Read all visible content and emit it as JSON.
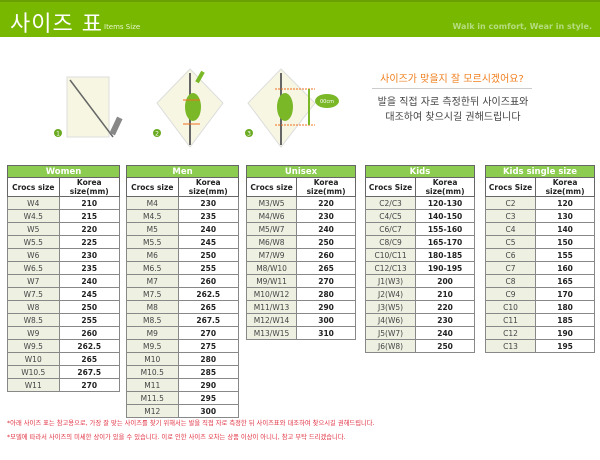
{
  "header": {
    "title": "사이즈 표",
    "subtitle": "Items Size",
    "slogan": "Walk in comfort, Wear in style.",
    "color": "#78b800"
  },
  "guide": {
    "steps": [
      "1",
      "2",
      "3"
    ],
    "measure_label": "00cm",
    "question": "사이즈가 맞을지 잘 모르시겠어요?",
    "desc_line1": "발을 직접 자로 측정한뒤 사이즈표와",
    "desc_line2": "대조하여 찾으시길 권해드립니다"
  },
  "tables": [
    {
      "title": "Women",
      "col1": "Crocs size",
      "col2": "Korea size(mm)",
      "rows": [
        [
          "W4",
          "210"
        ],
        [
          "W4.5",
          "215"
        ],
        [
          "W5",
          "220"
        ],
        [
          "W5.5",
          "225"
        ],
        [
          "W6",
          "230"
        ],
        [
          "W6.5",
          "235"
        ],
        [
          "W7",
          "240"
        ],
        [
          "W7.5",
          "245"
        ],
        [
          "W8",
          "250"
        ],
        [
          "W8.5",
          "255"
        ],
        [
          "W9",
          "260"
        ],
        [
          "W9.5",
          "262.5"
        ],
        [
          "W10",
          "265"
        ],
        [
          "W10.5",
          "267.5"
        ],
        [
          "W11",
          "270"
        ]
      ]
    },
    {
      "title": "Men",
      "col1": "Crocs size",
      "col2": "Korea size(mm)",
      "rows": [
        [
          "M4",
          "230"
        ],
        [
          "M4.5",
          "235"
        ],
        [
          "M5",
          "240"
        ],
        [
          "M5.5",
          "245"
        ],
        [
          "M6",
          "250"
        ],
        [
          "M6.5",
          "255"
        ],
        [
          "M7",
          "260"
        ],
        [
          "M7.5",
          "262.5"
        ],
        [
          "M8",
          "265"
        ],
        [
          "M8.5",
          "267.5"
        ],
        [
          "M9",
          "270"
        ],
        [
          "M9.5",
          "275"
        ],
        [
          "M10",
          "280"
        ],
        [
          "M10.5",
          "285"
        ],
        [
          "M11",
          "290"
        ],
        [
          "M11.5",
          "295"
        ],
        [
          "M12",
          "300"
        ]
      ]
    },
    {
      "title": "Unisex",
      "col1": "Crocs size",
      "col2": "Korea size(mm)",
      "rows": [
        [
          "M3/W5",
          "220"
        ],
        [
          "M4/W6",
          "230"
        ],
        [
          "M5/W7",
          "240"
        ],
        [
          "M6/W8",
          "250"
        ],
        [
          "M7/W9",
          "260"
        ],
        [
          "M8/W10",
          "265"
        ],
        [
          "M9/W11",
          "270"
        ],
        [
          "M10/W12",
          "280"
        ],
        [
          "M11/W13",
          "290"
        ],
        [
          "M12/W14",
          "300"
        ],
        [
          "M13/W15",
          "310"
        ]
      ]
    },
    {
      "title": "Kids",
      "col1": "Crocs Size",
      "col2": "Korea size(mm)",
      "rows": [
        [
          "C2/C3",
          "120-130"
        ],
        [
          "C4/C5",
          "140-150"
        ],
        [
          "C6/C7",
          "155-160"
        ],
        [
          "C8/C9",
          "165-170"
        ],
        [
          "C10/C11",
          "180-185"
        ],
        [
          "C12/C13",
          "190-195"
        ],
        [
          "J1(W3)",
          "200"
        ],
        [
          "J2(W4)",
          "210"
        ],
        [
          "J3(W5)",
          "220"
        ],
        [
          "J4(W6)",
          "230"
        ],
        [
          "J5(W7)",
          "240"
        ],
        [
          "J6(W8)",
          "250"
        ]
      ]
    },
    {
      "title": "Kids single size",
      "col1": "Crocs Size",
      "col2": "Korea size(mm)",
      "rows": [
        [
          "C2",
          "120"
        ],
        [
          "C3",
          "130"
        ],
        [
          "C4",
          "140"
        ],
        [
          "C5",
          "150"
        ],
        [
          "C6",
          "155"
        ],
        [
          "C7",
          "160"
        ],
        [
          "C8",
          "165"
        ],
        [
          "C9",
          "170"
        ],
        [
          "C10",
          "180"
        ],
        [
          "C11",
          "185"
        ],
        [
          "C12",
          "190"
        ],
        [
          "C13",
          "195"
        ]
      ]
    }
  ],
  "notes": [
    "*아래 사이즈 표는 참고용으로, 가장 잘 맞는 사이즈를 찾기 위해서는 발을 직접 자로 측정한 뒤 사이즈표와 대조하여 찾으시길 권해드립니다.",
    "*모델에 따라서 사이즈의 미세한 상이가 있을 수 있습니다. 이로 인한 사이즈 오차는 상품 이상이 아니니, 참고 부탁 드리겠습니다."
  ]
}
